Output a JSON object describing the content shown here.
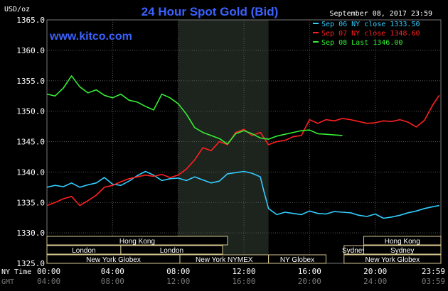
{
  "chart_data": {
    "type": "line",
    "title": "24 Hour Spot Gold (Bid)",
    "ylabel": "USD/oz",
    "watermark": "www.kitco.com",
    "date_label": "September 08, 2017 23:59",
    "ylim": [
      1325.0,
      1365.0
    ],
    "yticks": [
      "1365.0",
      "1360.0",
      "1355.0",
      "1350.0",
      "1345.0",
      "1340.0",
      "1335.0",
      "1330.0",
      "1325.0"
    ],
    "x_hours": [
      0,
      24
    ],
    "xticks": [
      "00:00",
      "04:00",
      "08:00",
      "12:00",
      "16:00",
      "20:00",
      "23:59"
    ],
    "xticks_gmt": [
      "04:00",
      "08:00",
      "12:00",
      "16:00",
      "20:00",
      "24:00",
      "03:59"
    ],
    "xrow_labels": {
      "ny": "NY Time",
      "gmt": "GMT"
    },
    "shaded_hours": [
      8,
      13.5
    ],
    "grid": true,
    "legend_position": "top-right",
    "legend": [
      {
        "text": "Sep 06 NY close 1333.50",
        "color": "#33ccff"
      },
      {
        "text": "Sep 07 NY close 1348.60",
        "color": "#ff2020"
      },
      {
        "text": "Sep 08 Last 1346.00",
        "color": "#33ee33"
      }
    ],
    "series": [
      {
        "name": "Sep 06",
        "color": "#33ccff",
        "x": [
          0,
          0.5,
          1,
          1.5,
          2,
          2.5,
          3,
          3.5,
          4,
          4.5,
          5,
          5.5,
          6,
          6.5,
          7,
          7.5,
          8,
          8.5,
          9,
          9.5,
          10,
          10.5,
          11,
          11.5,
          12,
          12.5,
          13,
          13.2,
          13.5,
          14,
          14.5,
          15,
          15.5,
          16,
          16.5,
          17,
          17.5,
          18,
          18.5,
          19,
          19.5,
          20,
          20.5,
          21,
          21.5,
          22,
          22.5,
          23,
          23.5,
          23.9
        ],
        "y": [
          1337.5,
          1337.8,
          1337.6,
          1338.2,
          1337.5,
          1337.9,
          1338.2,
          1339.1,
          1338.0,
          1337.8,
          1338.5,
          1339.4,
          1340.1,
          1339.5,
          1338.6,
          1338.9,
          1339.0,
          1338.6,
          1339.2,
          1338.7,
          1338.2,
          1338.5,
          1339.7,
          1339.9,
          1340.1,
          1339.8,
          1339.2,
          1337.0,
          1334.0,
          1333.0,
          1333.4,
          1333.2,
          1333.0,
          1333.6,
          1333.2,
          1333.1,
          1333.5,
          1333.4,
          1333.3,
          1332.9,
          1332.7,
          1333.1,
          1332.4,
          1332.6,
          1332.9,
          1333.3,
          1333.6,
          1334.0,
          1334.3,
          1334.5
        ]
      },
      {
        "name": "Sep 07",
        "color": "#ff2020",
        "x": [
          0,
          0.5,
          1,
          1.5,
          2,
          2.5,
          3,
          3.5,
          4,
          4.5,
          5,
          5.5,
          6,
          6.5,
          7,
          7.5,
          8,
          8.5,
          9,
          9.5,
          10,
          10.5,
          11,
          11.5,
          12,
          12.5,
          13,
          13.5,
          14,
          14.5,
          15,
          15.5,
          16,
          16.5,
          17,
          17.5,
          18,
          18.5,
          19,
          19.5,
          20,
          20.5,
          21,
          21.5,
          22,
          22.5,
          23,
          23.5,
          23.9
        ],
        "y": [
          1334.5,
          1335.0,
          1335.6,
          1336.0,
          1334.5,
          1335.3,
          1336.2,
          1337.5,
          1337.8,
          1338.4,
          1338.9,
          1339.2,
          1339.5,
          1339.3,
          1339.6,
          1339.1,
          1339.5,
          1340.5,
          1342.0,
          1344.0,
          1343.5,
          1345.0,
          1344.5,
          1346.5,
          1347.0,
          1346.0,
          1346.5,
          1344.5,
          1345.0,
          1345.2,
          1345.8,
          1346.0,
          1348.6,
          1348.0,
          1348.6,
          1348.4,
          1348.8,
          1348.6,
          1348.3,
          1348.0,
          1348.1,
          1348.4,
          1348.3,
          1348.6,
          1348.2,
          1347.4,
          1348.5,
          1351.0,
          1352.6
        ]
      },
      {
        "name": "Sep 08",
        "color": "#33ee33",
        "x": [
          0,
          0.5,
          1,
          1.5,
          2,
          2.5,
          3,
          3.5,
          4,
          4.5,
          5,
          5.5,
          6,
          6.5,
          7,
          7.5,
          8,
          8.5,
          9,
          9.5,
          10,
          10.5,
          11,
          11.5,
          12,
          12.5,
          13,
          13.5,
          14,
          14.5,
          15,
          15.5,
          16,
          16.5,
          17,
          17.5,
          18
        ],
        "y": [
          1352.8,
          1352.5,
          1353.8,
          1355.8,
          1354.0,
          1353.0,
          1353.5,
          1352.6,
          1352.2,
          1352.8,
          1351.8,
          1351.5,
          1350.8,
          1350.2,
          1352.8,
          1352.2,
          1351.2,
          1349.5,
          1347.3,
          1346.5,
          1346.0,
          1345.5,
          1344.6,
          1346.3,
          1346.8,
          1346.3,
          1345.6,
          1345.4,
          1345.9,
          1346.2,
          1346.5,
          1346.8,
          1346.9,
          1346.3,
          1346.2,
          1346.1,
          1346.0
        ]
      }
    ],
    "sessions": [
      {
        "label": "Hong Kong",
        "row": 0,
        "start": 0,
        "end": 11
      },
      {
        "label": "Hong Kong",
        "row": 0,
        "start": 19.3,
        "end": 24
      },
      {
        "label": "London",
        "row": 1,
        "start": 0,
        "end": 4.5
      },
      {
        "label": "London",
        "row": 1,
        "start": 4.5,
        "end": 10.7
      },
      {
        "label": "Sydney",
        "row": 1,
        "start": 18.1,
        "end": 19.3
      },
      {
        "label": "Sydney",
        "row": 1,
        "start": 19.3,
        "end": 24
      },
      {
        "label": "New York Globex",
        "row": 2,
        "start": 0,
        "end": 8.1
      },
      {
        "label": "New York NYMEX",
        "row": 2,
        "start": 8.1,
        "end": 13.5
      },
      {
        "label": "NY Globex",
        "row": 2,
        "start": 13.5,
        "end": 17.0
      },
      {
        "label": "New York Globex",
        "row": 2,
        "start": 18.1,
        "end": 24
      }
    ]
  }
}
